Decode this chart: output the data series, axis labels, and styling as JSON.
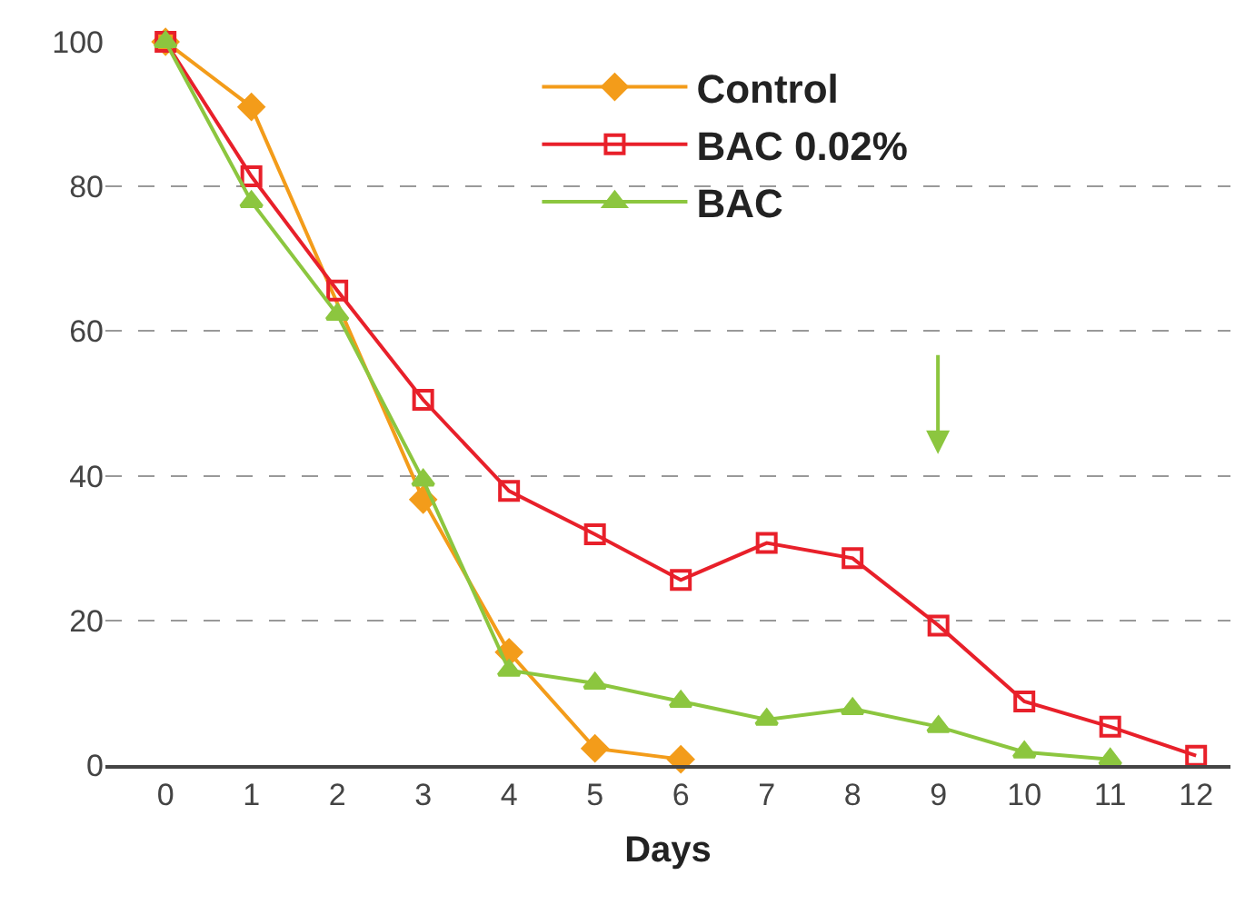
{
  "chart_data": {
    "type": "line",
    "xlabel": "Days",
    "x": [
      0,
      1,
      2,
      3,
      4,
      5,
      6,
      7,
      8,
      9,
      10,
      11,
      12
    ],
    "series": [
      {
        "name": "Control",
        "color": "#f39c1a",
        "marker": "diamond",
        "values": [
          100,
          91,
          null,
          36.7,
          15.6,
          2.3,
          0.8,
          null,
          null,
          null,
          null,
          null,
          null
        ]
      },
      {
        "name": "BAC 0.02%",
        "color": "#e8202a",
        "marker": "square-open",
        "values": [
          100,
          81.4,
          65.6,
          50.5,
          37.9,
          31.9,
          25.6,
          30.7,
          28.6,
          19.3,
          8.8,
          5.3,
          1.3
        ]
      },
      {
        "name": "BAC",
        "color": "#8cc63f",
        "marker": "triangle",
        "values": [
          100,
          77.9,
          62.3,
          39.4,
          13.1,
          11.3,
          8.8,
          6.3,
          7.8,
          5.3,
          1.8,
          0.8,
          null
        ]
      }
    ],
    "xlim": [
      -0.7,
      12.4
    ],
    "xticks": [
      0,
      1,
      2,
      3,
      4,
      5,
      6,
      7,
      8,
      9,
      10,
      11,
      12
    ],
    "ylim": [
      0,
      100
    ],
    "yticks": [
      0,
      20,
      40,
      60,
      80,
      100
    ],
    "grid": "y",
    "legend": "top",
    "line_style": "solid"
  }
}
